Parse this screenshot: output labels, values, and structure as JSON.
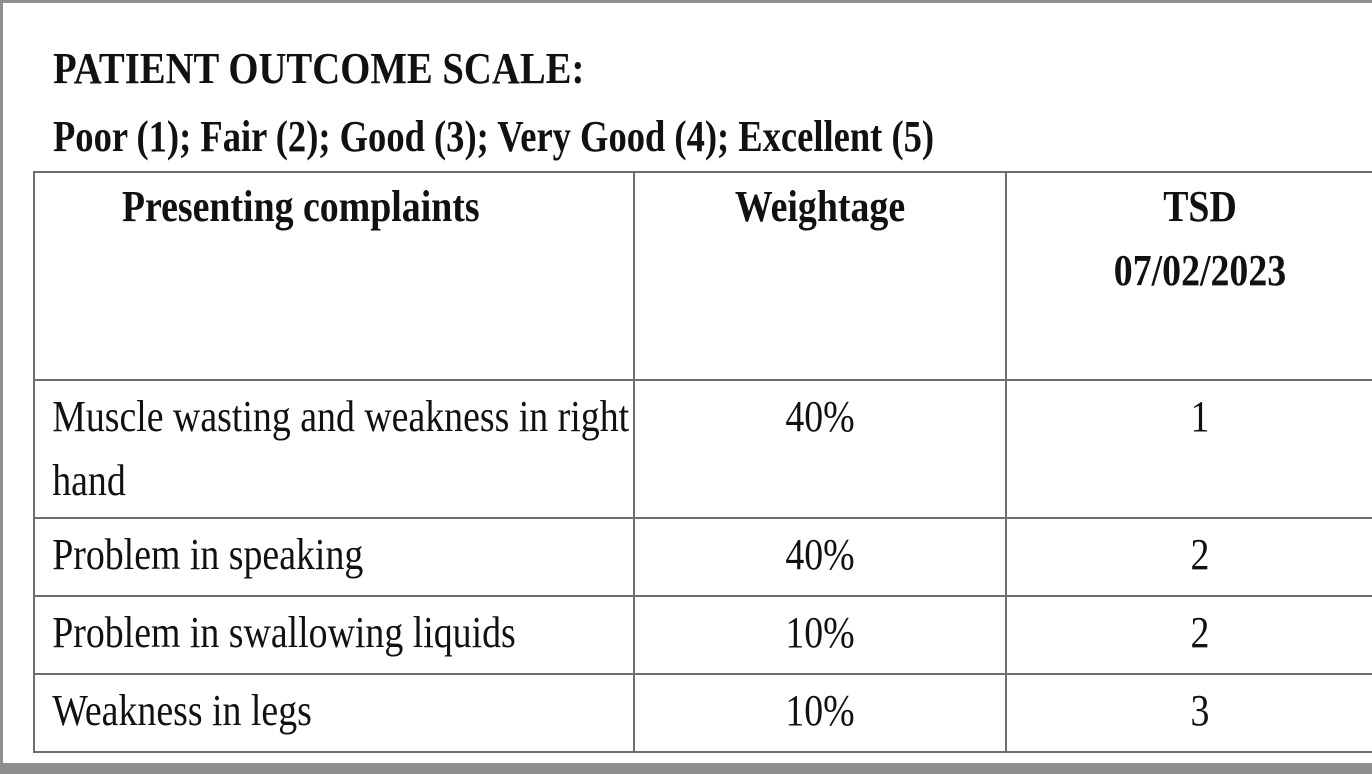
{
  "title": "PATIENT OUTCOME SCALE:",
  "scale_legend": "Poor (1); Fair (2); Good (3); Very Good (4); Excellent (5)",
  "table": {
    "headers": {
      "complaints": "Presenting complaints",
      "weightage": "Weightage",
      "tsd_label": "TSD",
      "tsd_date": "07/02/2023"
    },
    "rows": [
      {
        "complaint": "Muscle wasting and weakness in right hand",
        "weightage": "40%",
        "score": "1"
      },
      {
        "complaint": "Problem in speaking",
        "weightage": "40%",
        "score": "2"
      },
      {
        "complaint": "Problem in swallowing liquids",
        "weightage": "10%",
        "score": "2"
      },
      {
        "complaint": "Weakness in legs",
        "weightage": "10%",
        "score": "3"
      }
    ]
  }
}
